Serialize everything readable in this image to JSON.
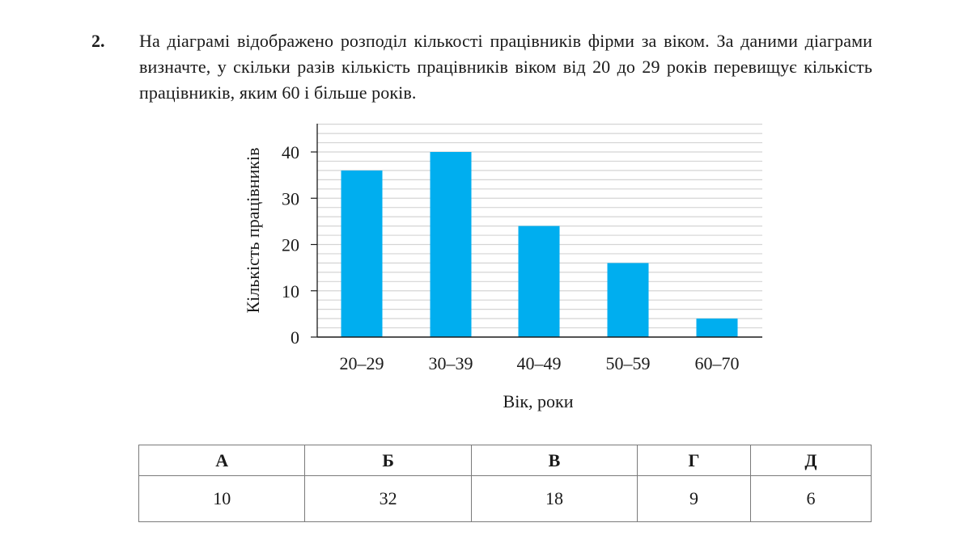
{
  "question": {
    "number": "2.",
    "text": "На діаграмі відображено розподіл кількості працівників фірми за віком. За даними діаграми визначте, у скільки разів кількість працівників віком від 20 до 29 років перевищує кількість працівників, яким 60 і більше років."
  },
  "chart_data": {
    "type": "bar",
    "title": "",
    "categories": [
      "20–29",
      "30–39",
      "40–49",
      "50–59",
      "60–70"
    ],
    "values": [
      36,
      40,
      24,
      16,
      4
    ],
    "xlabel": "Вік, роки",
    "ylabel": "Кількість працівників",
    "yticks": [
      0,
      10,
      20,
      30,
      40
    ],
    "ylim": [
      0,
      46
    ],
    "grid": true,
    "grid_step": 2,
    "bar_color": "#00aeef",
    "legend": null
  },
  "answers": {
    "headers": [
      "А",
      "Б",
      "В",
      "Г",
      "Д"
    ],
    "values": [
      "10",
      "32",
      "18",
      "9",
      "6"
    ]
  }
}
